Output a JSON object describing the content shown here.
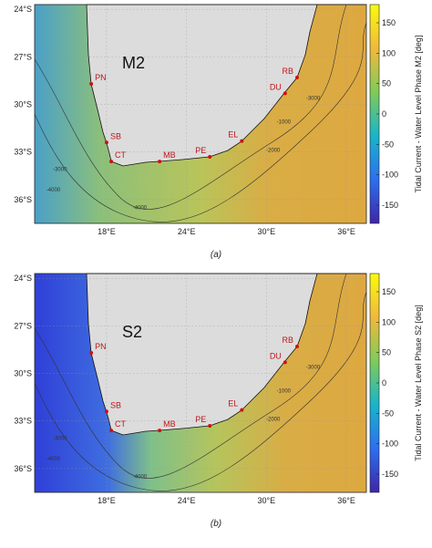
{
  "panels": [
    {
      "title": "M2",
      "caption": "(a)",
      "colorbar_label": "Tidal Current - Water Level Phase M2 [deg]",
      "clim": [
        -180,
        180
      ],
      "cticks": [
        150,
        100,
        50,
        0,
        -50,
        -100,
        -150
      ],
      "xlim": [
        12.6,
        37.5
      ],
      "ylim": [
        -37.5,
        -23.7
      ],
      "xticks": [
        {
          "value": 18,
          "label": "18°E"
        },
        {
          "value": 24,
          "label": "24°E"
        },
        {
          "value": 30,
          "label": "30°E"
        },
        {
          "value": 36,
          "label": "36°E"
        }
      ],
      "yticks": [
        {
          "value": -24,
          "label": "24°S"
        },
        {
          "value": -27,
          "label": "27°S"
        },
        {
          "value": -30,
          "label": "30°S"
        },
        {
          "value": -33,
          "label": "33°S"
        },
        {
          "value": -36,
          "label": "36°S"
        }
      ],
      "stations": [
        {
          "name": "PN",
          "lon": 16.85,
          "lat": -28.7
        },
        {
          "name": "SB",
          "lon": 18.0,
          "lat": -32.4
        },
        {
          "name": "CT",
          "lon": 18.35,
          "lat": -33.6
        },
        {
          "name": "MB",
          "lon": 21.98,
          "lat": -33.6
        },
        {
          "name": "PE",
          "lon": 25.75,
          "lat": -33.3
        },
        {
          "name": "EL",
          "lon": 28.15,
          "lat": -32.3
        },
        {
          "name": "DU",
          "lon": 31.4,
          "lat": -29.3
        },
        {
          "name": "RB",
          "lon": 32.3,
          "lat": -28.3
        }
      ],
      "contours": [
        {
          "value": -1000,
          "lon": 31.3,
          "lat": -31.2
        },
        {
          "value": -2000,
          "lon": 30.5,
          "lat": -33.0
        },
        {
          "value": -3000,
          "lon": 33.5,
          "lat": -29.7
        },
        {
          "value": -4000,
          "lon": 20.5,
          "lat": -36.6
        },
        {
          "value": -3000,
          "lon": 14.5,
          "lat": -34.2
        },
        {
          "value": -4000,
          "lon": 14.0,
          "lat": -35.5
        }
      ]
    },
    {
      "title": "S2",
      "caption": "(b)",
      "colorbar_label": "Tidal Current - Water Level Phase S2 [deg]",
      "clim": [
        -180,
        180
      ],
      "cticks": [
        150,
        100,
        50,
        0,
        -50,
        -100,
        -150
      ],
      "xlim": [
        12.6,
        37.5
      ],
      "ylim": [
        -37.5,
        -23.7
      ],
      "xticks": [
        {
          "value": 18,
          "label": "18°E"
        },
        {
          "value": 24,
          "label": "24°E"
        },
        {
          "value": 30,
          "label": "30°E"
        },
        {
          "value": 36,
          "label": "36°E"
        }
      ],
      "yticks": [
        {
          "value": -24,
          "label": "24°S"
        },
        {
          "value": -27,
          "label": "27°S"
        },
        {
          "value": -30,
          "label": "30°S"
        },
        {
          "value": -33,
          "label": "33°S"
        },
        {
          "value": -36,
          "label": "36°S"
        }
      ],
      "stations": [
        {
          "name": "PN",
          "lon": 16.85,
          "lat": -28.7
        },
        {
          "name": "SB",
          "lon": 18.0,
          "lat": -32.4
        },
        {
          "name": "CT",
          "lon": 18.35,
          "lat": -33.6
        },
        {
          "name": "MB",
          "lon": 21.98,
          "lat": -33.6
        },
        {
          "name": "PE",
          "lon": 25.75,
          "lat": -33.3
        },
        {
          "name": "EL",
          "lon": 28.15,
          "lat": -32.3
        },
        {
          "name": "DU",
          "lon": 31.4,
          "lat": -29.3
        },
        {
          "name": "RB",
          "lon": 32.3,
          "lat": -28.3
        }
      ],
      "contours": [
        {
          "value": -1000,
          "lon": 31.3,
          "lat": -31.2
        },
        {
          "value": -2000,
          "lon": 30.5,
          "lat": -33.0
        },
        {
          "value": -3000,
          "lon": 33.5,
          "lat": -29.7
        },
        {
          "value": -4000,
          "lon": 20.5,
          "lat": -36.6
        },
        {
          "value": -3000,
          "lon": 14.5,
          "lat": -34.2
        },
        {
          "value": -4000,
          "lon": 14.0,
          "lat": -35.5
        }
      ]
    }
  ]
}
